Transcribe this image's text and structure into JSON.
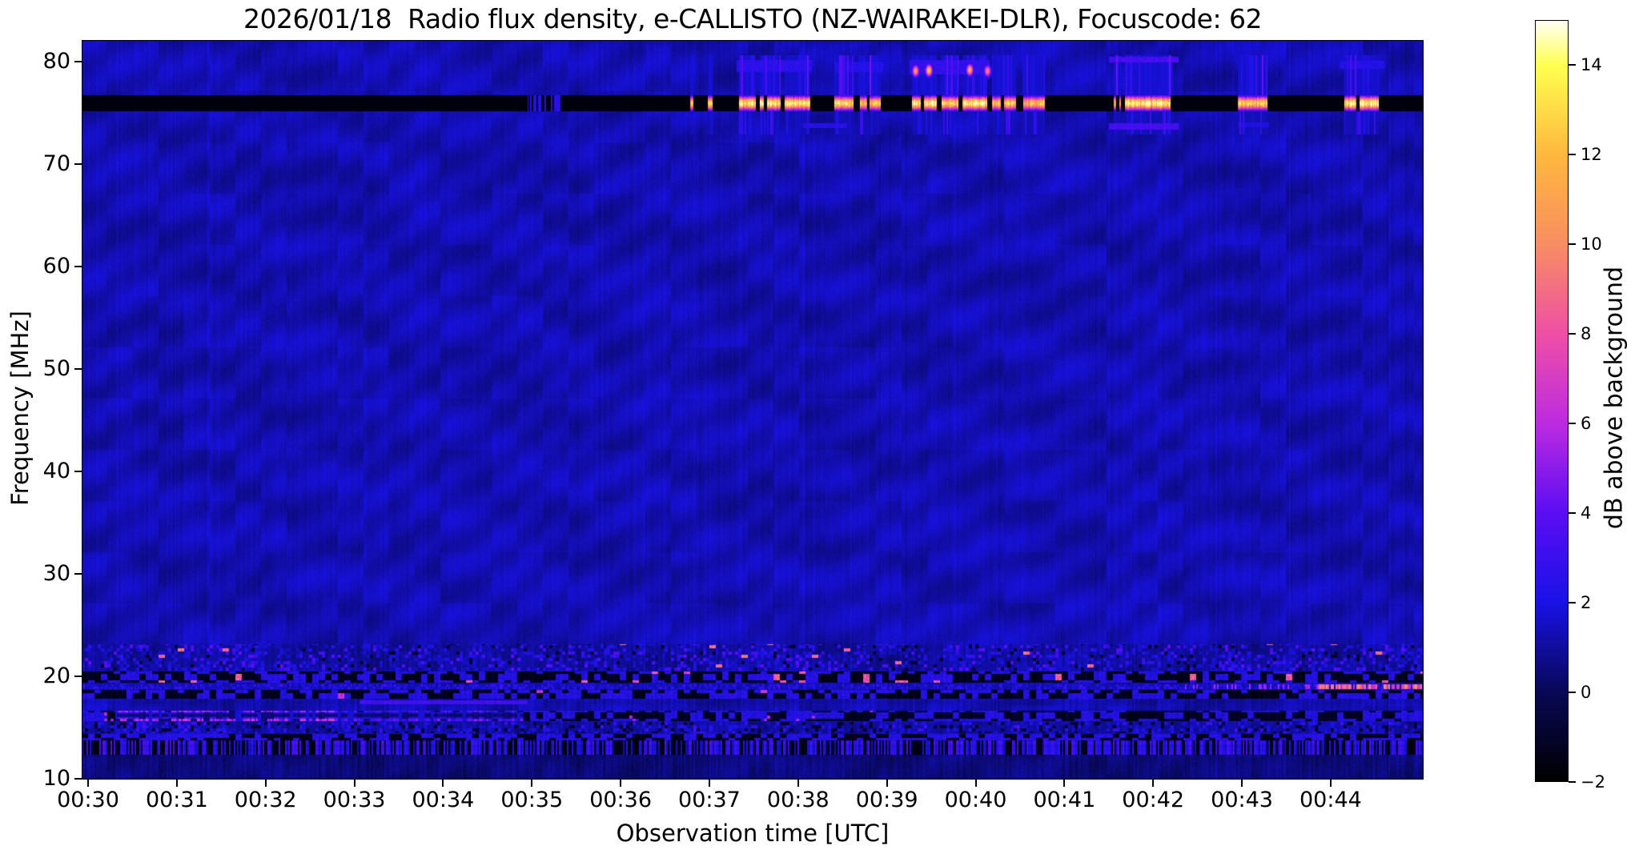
{
  "title": {
    "text": "2026/01/18  Radio flux density, e-CALLISTO (NZ-WAIRAKEI-DLR), Focuscode: 62"
  },
  "axes": {
    "xlabel": "Observation time [UTC]",
    "ylabel": "Frequency [MHz]",
    "x_ticks": [
      {
        "label": "00:30",
        "minute": 0
      },
      {
        "label": "00:31",
        "minute": 1
      },
      {
        "label": "00:32",
        "minute": 2
      },
      {
        "label": "00:33",
        "minute": 3
      },
      {
        "label": "00:34",
        "minute": 4
      },
      {
        "label": "00:35",
        "minute": 5
      },
      {
        "label": "00:36",
        "minute": 6
      },
      {
        "label": "00:37",
        "minute": 7
      },
      {
        "label": "00:38",
        "minute": 8
      },
      {
        "label": "00:39",
        "minute": 9
      },
      {
        "label": "00:40",
        "minute": 10
      },
      {
        "label": "00:41",
        "minute": 11
      },
      {
        "label": "00:42",
        "minute": 12
      },
      {
        "label": "00:43",
        "minute": 13
      },
      {
        "label": "00:44",
        "minute": 14
      }
    ],
    "y_ticks": [
      {
        "label": "80",
        "mhz": 80
      },
      {
        "label": "70",
        "mhz": 70
      },
      {
        "label": "60",
        "mhz": 60
      },
      {
        "label": "50",
        "mhz": 50
      },
      {
        "label": "40",
        "mhz": 40
      },
      {
        "label": "30",
        "mhz": 30
      },
      {
        "label": "20",
        "mhz": 20
      },
      {
        "label": "10",
        "mhz": 10
      }
    ]
  },
  "colorbar": {
    "label": "dB above background",
    "vmin": -2,
    "vmax": 15,
    "ticks": [
      {
        "label": "−2",
        "value": -2
      },
      {
        "label": "0",
        "value": 0
      },
      {
        "label": "2",
        "value": 2
      },
      {
        "label": "4",
        "value": 4
      },
      {
        "label": "6",
        "value": 6
      },
      {
        "label": "8",
        "value": 8
      },
      {
        "label": "10",
        "value": 10
      },
      {
        "label": "12",
        "value": 12
      },
      {
        "label": "14",
        "value": 14
      }
    ],
    "colormap": [
      [
        -2,
        0,
        0,
        0
      ],
      [
        0,
        8,
        8,
        85
      ],
      [
        2,
        25,
        18,
        230
      ],
      [
        4,
        91,
        13,
        243
      ],
      [
        6,
        189,
        43,
        224
      ],
      [
        8,
        239,
        79,
        165
      ],
      [
        10,
        248,
        141,
        98
      ],
      [
        12,
        255,
        183,
        62
      ],
      [
        14,
        255,
        255,
        80
      ],
      [
        15,
        255,
        255,
        244
      ]
    ]
  },
  "chart_data": {
    "type": "heatmap",
    "title": "2026/01/18  Radio flux density, e-CALLISTO (NZ-WAIRAKEI-DLR), Focuscode: 62",
    "date": "2026/01/18",
    "network": "e-CALLISTO",
    "station": "NZ-WAIRAKEI-DLR",
    "focuscode": 62,
    "xlabel": "Observation time [UTC]",
    "ylabel": "Frequency [MHz]",
    "x_range_utc": [
      "00:30",
      "00:45"
    ],
    "y_range_mhz": [
      10,
      82.1
    ],
    "value_range_db": [
      -2,
      15
    ],
    "background_level_db": 1.4,
    "features": {
      "rfi_channel": {
        "f_mhz": [
          75.2,
          76.7
        ],
        "quiet_level_db": -2,
        "bursts_min_after_0030": [
          [
            4.95,
            5.35,
            4
          ],
          [
            6.78,
            6.82,
            13
          ],
          [
            6.98,
            7.03,
            14
          ],
          [
            7.33,
            7.52,
            15
          ],
          [
            7.56,
            7.8,
            15
          ],
          [
            7.84,
            8.13,
            15
          ],
          [
            8.4,
            8.62,
            14
          ],
          [
            8.67,
            8.77,
            13
          ],
          [
            8.8,
            8.93,
            14
          ],
          [
            9.28,
            9.56,
            15
          ],
          [
            9.61,
            9.8,
            14
          ],
          [
            9.85,
            10.13,
            15
          ],
          [
            10.18,
            10.45,
            13
          ],
          [
            10.52,
            10.78,
            13
          ],
          [
            11.55,
            11.63,
            12
          ],
          [
            11.68,
            12.22,
            15
          ],
          [
            12.95,
            13.28,
            14
          ],
          [
            14.15,
            14.55,
            15
          ]
        ]
      },
      "hotspots_t_f_amp": [
        [
          9.32,
          79.1,
          11
        ],
        [
          9.47,
          79.15,
          13
        ],
        [
          9.93,
          79.2,
          12
        ],
        [
          10.13,
          79.1,
          10
        ]
      ],
      "smudges_t0_t1_f0_f1_amp": [
        [
          7.3,
          8.15,
          79.0,
          80.2,
          2.6
        ],
        [
          8.4,
          8.95,
          79.0,
          80.0,
          2.4
        ],
        [
          9.25,
          10.15,
          78.8,
          80.2,
          2.8
        ],
        [
          11.5,
          12.28,
          79.9,
          80.5,
          3.4
        ],
        [
          11.5,
          12.28,
          73.4,
          74.0,
          3.4
        ],
        [
          8.05,
          8.55,
          73.5,
          74.0,
          2.4
        ],
        [
          12.95,
          13.3,
          73.6,
          74.1,
          2.2
        ],
        [
          14.1,
          14.6,
          79.3,
          80.1,
          2.4
        ]
      ],
      "low_bands": [
        {
          "f": [
            20.6,
            23.2
          ],
          "type": "speckle",
          "amp": 3.0,
          "black_p": 0.04,
          "bright_p": 0.008,
          "bright_amp": 9
        },
        {
          "f": [
            19.4,
            20.5
          ],
          "type": "broken",
          "black_p": 0.62,
          "blob_p": 0.04,
          "blob_amp": 8.5
        },
        {
          "f": [
            18.8,
            19.3
          ],
          "type": "speckleline",
          "line_t": [
            13.85,
            15.1
          ],
          "line_amp": 8.5,
          "pre_t": [
            12.35,
            13.85
          ]
        },
        {
          "f": [
            17.9,
            18.7
          ],
          "type": "broken",
          "black_p": 0.55,
          "blob_p": 0.012,
          "blob_amp": 6.5
        },
        {
          "f": [
            17.35,
            17.75
          ],
          "type": "blueline",
          "t": [
            3.05,
            4.95
          ],
          "amp": 3.4
        },
        {
          "f": [
            15.7,
            16.7
          ],
          "type": "magenta",
          "t": [
            0.3,
            4.9
          ],
          "amp": 7.0,
          "black_p": 0.5
        },
        {
          "f": [
            14.5,
            15.6
          ],
          "type": "speckle",
          "amp": 2.2,
          "black_p": 0.15,
          "bright_p": 0.0,
          "bright_amp": 0
        },
        {
          "f": [
            13.8,
            14.4
          ],
          "type": "broken",
          "black_p": 0.45,
          "blob_p": 0.0,
          "blob_amp": 0
        },
        {
          "f": [
            12.4,
            13.8
          ],
          "type": "barcode",
          "black_p": 0.42,
          "amp": 2.8
        },
        {
          "f": [
            9.9,
            12.4
          ],
          "type": "dim",
          "offset": -0.55
        }
      ]
    }
  }
}
